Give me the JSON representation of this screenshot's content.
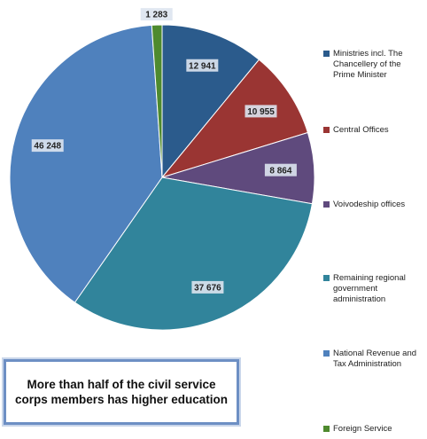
{
  "chart_data": {
    "type": "pie",
    "categories": [
      "Ministries incl. The Chancellery of the Prime Minister",
      "Central Offices",
      "Voivodeship offices",
      "Remaining regional government administration",
      "National Revenue and Tax Administration",
      "Foreign Service"
    ],
    "values": [
      12941,
      10955,
      8864,
      37676,
      46248,
      1283
    ],
    "value_labels": [
      "12 941",
      "10 955",
      "8 864",
      "37 676",
      "46 248",
      "1 283"
    ],
    "colors": [
      "#2b5b8c",
      "#9a3533",
      "#5f4a7d",
      "#31849b",
      "#4f81bd",
      "#4e8a2e"
    ],
    "annotation": "More than half of the civil service corps members has higher education"
  }
}
